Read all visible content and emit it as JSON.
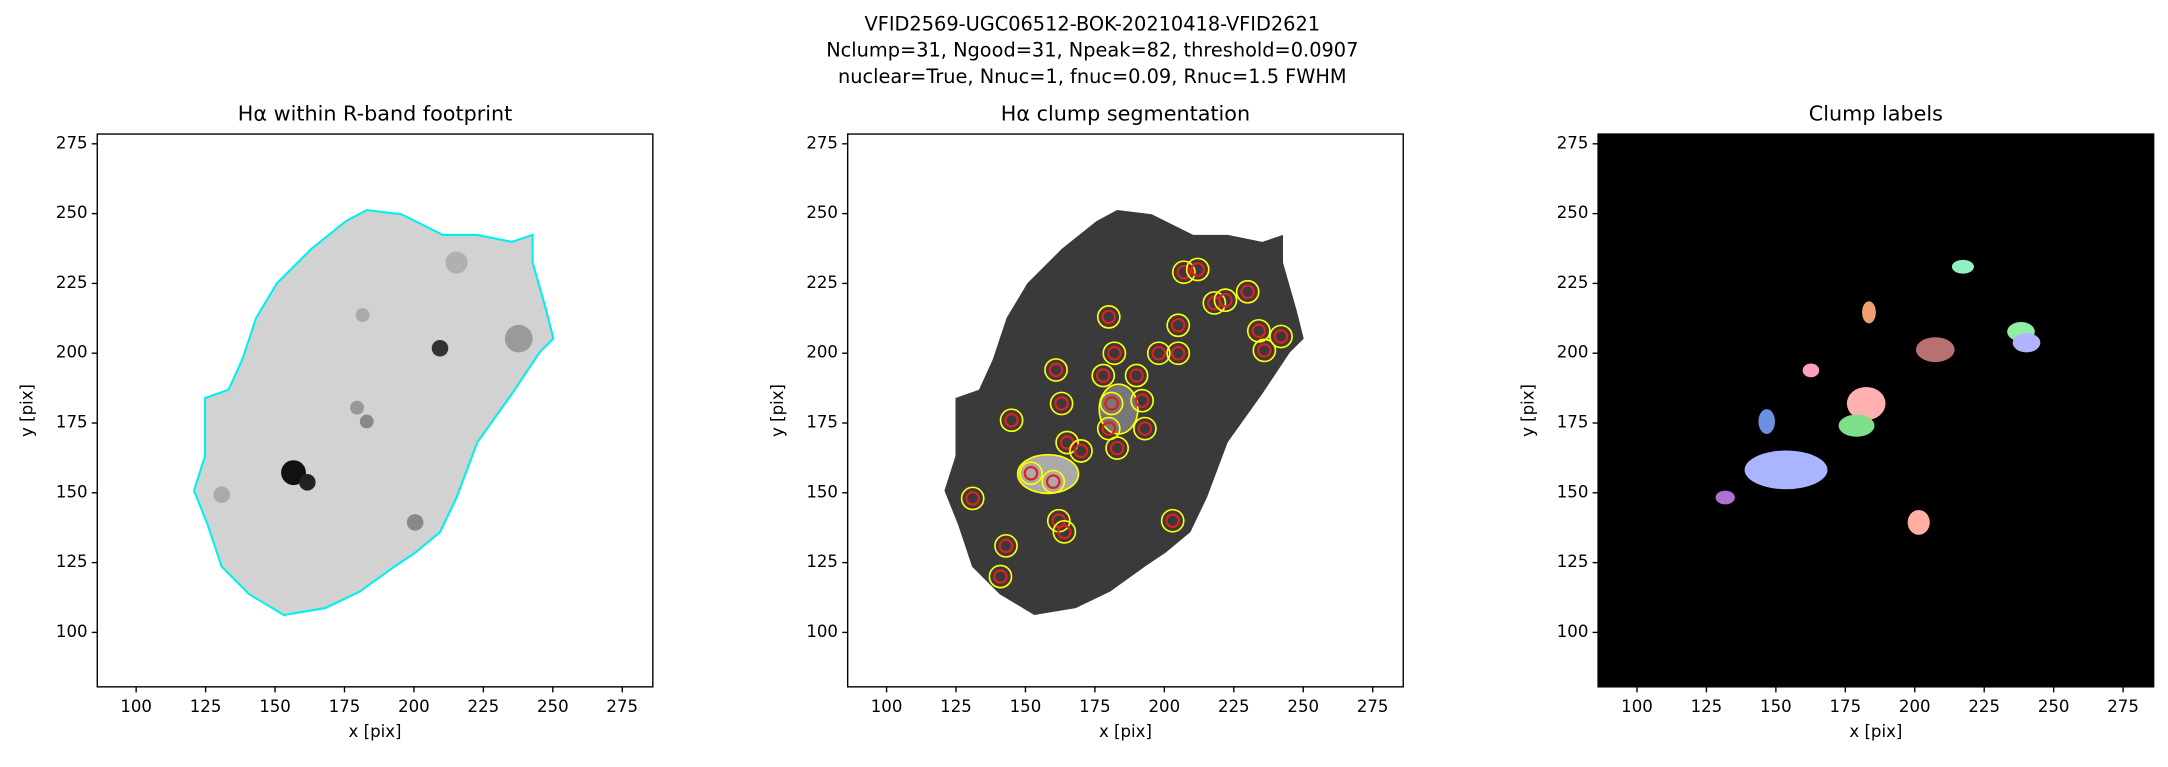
{
  "title": [
    "VFID2569-UGC06512-BOK-20210418-VFID2621",
    "Nclump=31, Ngood=31, Npeak=82, threshold=0.0907",
    "nuclear=True, Nnuc=1, fnuc=0.09, Rnuc=1.5 FWHM"
  ],
  "chart_data": [
    {
      "type": "image",
      "title": "Hα within R-band footprint",
      "xlabel": "x [pix]",
      "ylabel": "y [pix]",
      "xlim": [
        86,
        286
      ],
      "ylim": [
        80.5,
        278.5
      ],
      "xticks": [
        100,
        125,
        150,
        175,
        200,
        225,
        250,
        275
      ],
      "yticks": [
        100,
        125,
        150,
        175,
        200,
        225,
        250,
        275
      ]
    },
    {
      "type": "image",
      "title": "Hα clump segmentation",
      "xlabel": "x [pix]",
      "ylabel": "y [pix]",
      "xlim": [
        86,
        286
      ],
      "ylim": [
        80.5,
        278.5
      ],
      "xticks": [
        100,
        125,
        150,
        175,
        200,
        225,
        250,
        275
      ],
      "yticks": [
        100,
        125,
        150,
        175,
        200,
        225,
        250,
        275
      ],
      "markers": {
        "color": "#e02020",
        "x": [
          131,
          145,
          143,
          141,
          152,
          160,
          161,
          163,
          165,
          170,
          162,
          164,
          181,
          182,
          178,
          180,
          190,
          192,
          193,
          180,
          198,
          205,
          205,
          207,
          212,
          218,
          222,
          230,
          234,
          236,
          242,
          203,
          183
        ],
        "y": [
          148,
          176,
          131,
          120,
          157,
          154,
          194,
          182,
          168,
          165,
          140,
          136,
          182,
          200,
          192,
          213,
          192,
          183,
          173,
          173,
          200,
          200,
          210,
          229,
          230,
          218,
          219,
          222,
          208,
          201,
          206,
          140,
          166
        ]
      }
    },
    {
      "type": "image",
      "title": "Clump labels",
      "xlabel": "x [pix]",
      "ylabel": "y [pix]",
      "xlim": [
        86,
        286
      ],
      "ylim": [
        80.5,
        278.5
      ],
      "xticks": [
        100,
        125,
        150,
        175,
        200,
        225,
        250,
        275
      ],
      "yticks": [
        100,
        125,
        150,
        175,
        200,
        225,
        250,
        275
      ]
    }
  ]
}
